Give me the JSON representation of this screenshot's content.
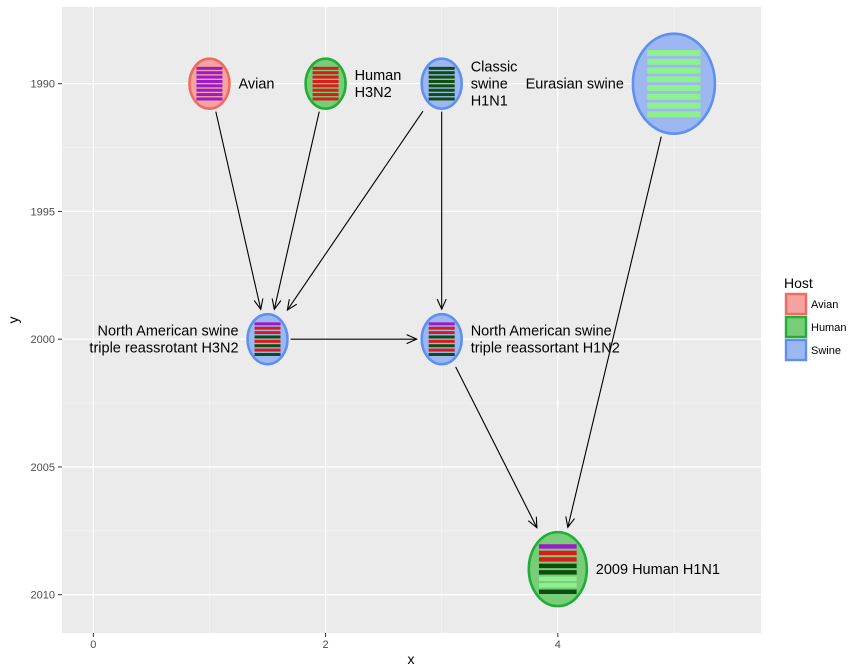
{
  "chart_data": {
    "type": "diagram",
    "x_axis": {
      "title": "x",
      "ticks": [
        0,
        2,
        4
      ],
      "range": [
        -0.27,
        5.75
      ]
    },
    "y_axis": {
      "title": "y",
      "ticks": [
        1990,
        1995,
        2000,
        2005,
        2010
      ],
      "reversed": true,
      "range": [
        1987,
        2011.5
      ]
    },
    "grid": true,
    "legend": {
      "title": "Host",
      "position": "right",
      "items": [
        {
          "label": "Avian",
          "fill": "#f4a3a0",
          "stroke": "#f26b63"
        },
        {
          "label": "Human",
          "fill": "#78cd78",
          "stroke": "#1fae36"
        },
        {
          "label": "Swine",
          "fill": "#9db8f0",
          "stroke": "#5f8ff2"
        }
      ]
    },
    "nodes": [
      {
        "id": "avian",
        "x": 1,
        "y": 1990,
        "host": "Avian",
        "size": "small",
        "label_lines": [
          "Avian"
        ],
        "label_side": "right",
        "segments": [
          "#9b1bc9",
          "#9b1bc9",
          "#9b1bc9",
          "#9b1bc9",
          "#9b1bc9",
          "#9b1bc9",
          "#9b1bc9",
          "#9b1bc9"
        ]
      },
      {
        "id": "human_h3n2",
        "x": 2,
        "y": 1990,
        "host": "Human",
        "size": "small",
        "label_lines": [
          "Human",
          "H3N2"
        ],
        "label_side": "right",
        "segments": [
          "#dd1a1a",
          "#dd1a1a",
          "#dd1a1a",
          "#dd1a1a",
          "#dd1a1a",
          "#dd1a1a",
          "#dd1a1a",
          "#dd1a1a"
        ]
      },
      {
        "id": "classic_swine",
        "x": 3,
        "y": 1990,
        "host": "Swine",
        "size": "small",
        "label_lines": [
          "Classic",
          "swine",
          "H1N1"
        ],
        "label_side": "right",
        "segments": [
          "#0d4d0d",
          "#0d4d0d",
          "#0d4d0d",
          "#0d4d0d",
          "#0d4d0d",
          "#0d4d0d",
          "#0d4d0d",
          "#0d4d0d"
        ]
      },
      {
        "id": "eurasian_swine",
        "x": 5,
        "y": 1990,
        "host": "Swine",
        "size": "large",
        "label_lines": [
          "Eurasian swine"
        ],
        "label_side": "left",
        "segments": [
          "#8ef08e",
          "#8ef08e",
          "#8ef08e",
          "#8ef08e",
          "#8ef08e",
          "#8ef08e",
          "#8ef08e",
          "#8ef08e"
        ]
      },
      {
        "id": "na_h3n2",
        "x": 1.5,
        "y": 2000,
        "host": "Swine",
        "size": "small",
        "label_lines": [
          "North American swine",
          "triple reassrotant H3N2"
        ],
        "label_side": "left",
        "segments": [
          "#9b1bc9",
          "#dd1a1a",
          "#dd1a1a",
          "#0d4d0d",
          "#dd1a1a",
          "#0d4d0d",
          "#dd1a1a",
          "#0d4d0d"
        ]
      },
      {
        "id": "na_h1n2",
        "x": 3,
        "y": 2000,
        "host": "Swine",
        "size": "small",
        "label_lines": [
          "North American swine",
          "triple reassortant H1N2"
        ],
        "label_side": "right",
        "segments": [
          "#9b1bc9",
          "#dd1a1a",
          "#dd1a1a",
          "#0d4d0d",
          "#dd1a1a",
          "#0d4d0d",
          "#dd1a1a",
          "#0d4d0d"
        ]
      },
      {
        "id": "human_h1n1_2009",
        "x": 4,
        "y": 2009,
        "host": "Human",
        "size": "medium",
        "label_lines": [
          "2009 Human H1N1"
        ],
        "label_side": "right",
        "segments": [
          "#9b1bc9",
          "#dd1a1a",
          "#dd1a1a",
          "#0d4d0d",
          "#0d4d0d",
          "#8ef08e",
          "#8ef08e",
          "#0d4d0d"
        ]
      }
    ],
    "edges": [
      {
        "from": "avian",
        "to": "na_h3n2"
      },
      {
        "from": "human_h3n2",
        "to": "na_h3n2"
      },
      {
        "from": "classic_swine",
        "to": "na_h3n2"
      },
      {
        "from": "classic_swine",
        "to": "na_h1n2"
      },
      {
        "from": "na_h3n2",
        "to": "na_h1n2"
      },
      {
        "from": "na_h1n2",
        "to": "human_h1n1_2009"
      },
      {
        "from": "eurasian_swine",
        "to": "human_h1n1_2009"
      }
    ]
  }
}
